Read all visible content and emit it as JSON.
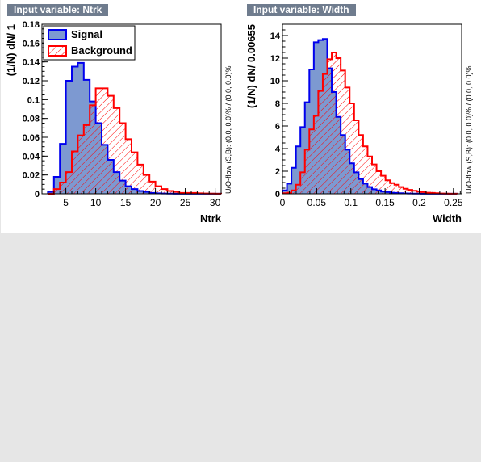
{
  "panels": [
    {
      "tag": "Input variable: Ntrk"
    },
    {
      "tag": "Input variable: Width"
    }
  ],
  "colors": {
    "background": "#e6e6e6",
    "frame": "#ffffff",
    "tag_background": "#6f7c8e",
    "signal_fill": "#7d99d1",
    "signal_line": "#0000ee",
    "background_line": "#ff0000"
  },
  "chart_data": [
    {
      "type": "histogram",
      "xlabel": "Ntrk",
      "ylabel": "(1/N) dN/ 1",
      "side_label": "U/O-flow (S,B): (0.0, 0.0)% / (0.0, 0.0)%",
      "xlim": [
        1,
        31
      ],
      "ylim": [
        0,
        0.18
      ],
      "xticks": [
        5,
        10,
        15,
        20,
        25,
        30
      ],
      "yticks": [
        0,
        0.02,
        0.04,
        0.06,
        0.08,
        0.1,
        0.12,
        0.14,
        0.16,
        0.18
      ],
      "ytick_labels": [
        "0",
        "0.02",
        "0.04",
        "0.06",
        "0.08",
        "0.1",
        "0.12",
        "0.14",
        "0.16",
        "0.18"
      ],
      "bin_edges_start": 2,
      "bin_width": 1,
      "legend": {
        "placement": "top-left",
        "entries": [
          "Signal",
          "Background"
        ]
      },
      "series": [
        {
          "name": "Signal",
          "style": "filled",
          "values": [
            0.002,
            0.018,
            0.053,
            0.12,
            0.135,
            0.139,
            0.121,
            0.098,
            0.075,
            0.052,
            0.036,
            0.023,
            0.014,
            0.008,
            0.005,
            0.003,
            0.002,
            0.001,
            0.0005,
            0.0003,
            0.0002,
            0.0001,
            0.0001,
            0.0001,
            0.0001,
            0.0001,
            0.0001,
            0.0001,
            0.0001
          ]
        },
        {
          "name": "Background",
          "style": "hatched",
          "values": [
            0.0,
            0.005,
            0.012,
            0.023,
            0.045,
            0.062,
            0.073,
            0.094,
            0.112,
            0.112,
            0.104,
            0.091,
            0.075,
            0.058,
            0.044,
            0.031,
            0.02,
            0.013,
            0.008,
            0.005,
            0.003,
            0.002,
            0.001,
            0.001,
            0.001,
            0.0005,
            0.0003,
            0.0002,
            0.0001
          ]
        }
      ]
    },
    {
      "type": "histogram",
      "xlabel": "Width",
      "ylabel": "(1/N) dN/ 0.00655",
      "side_label": "U/O-flow (S,B): (0.0, 0.0)% / (0.0, 0.0)%",
      "xlim": [
        0,
        0.262
      ],
      "ylim": [
        0,
        15
      ],
      "xticks": [
        0,
        0.05,
        0.1,
        0.15,
        0.2,
        0.25
      ],
      "xtick_labels": [
        "0",
        "0.05",
        "0.1",
        "0.15",
        "0.2",
        "0.25"
      ],
      "yticks": [
        0,
        2,
        4,
        6,
        8,
        10,
        12,
        14
      ],
      "bin_edges_start": 0,
      "bin_width": 0.00655,
      "series": [
        {
          "name": "Signal",
          "style": "filled",
          "values": [
            0.3,
            0.9,
            2.3,
            4.2,
            5.9,
            8.1,
            11.0,
            13.4,
            13.6,
            13.7,
            11.1,
            9.0,
            6.8,
            5.2,
            3.9,
            2.7,
            1.9,
            1.3,
            0.9,
            0.6,
            0.4,
            0.3,
            0.2,
            0.15,
            0.1,
            0.08,
            0.05,
            0.04,
            0.03,
            0.02,
            0.02,
            0.01,
            0.01,
            0.01,
            0.01,
            0.01,
            0.01,
            0.01,
            0.01
          ]
        },
        {
          "name": "Background",
          "style": "hatched",
          "values": [
            0.05,
            0.1,
            0.3,
            0.8,
            1.9,
            3.9,
            5.7,
            6.9,
            9.1,
            10.6,
            11.9,
            12.5,
            12.0,
            10.9,
            9.4,
            8.0,
            6.5,
            5.2,
            4.2,
            3.3,
            2.6,
            2.0,
            1.6,
            1.2,
            0.95,
            0.8,
            0.6,
            0.45,
            0.35,
            0.27,
            0.2,
            0.15,
            0.1,
            0.08,
            0.05,
            0.03,
            0.02,
            0.01,
            0.01
          ]
        }
      ]
    }
  ]
}
